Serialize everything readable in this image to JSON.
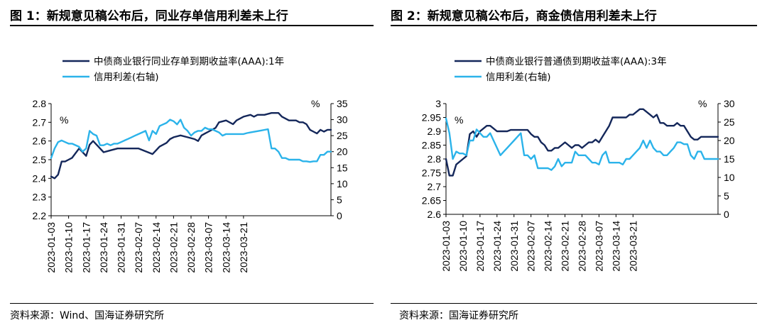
{
  "figures": [
    {
      "title": "图 1：新规意见稿公布后，同业存单信用利差未上行",
      "source": "资料来源：Wind、国海证券研究所"
    },
    {
      "title": "图 2：新规意见稿公布后，商金债信用利差未上行",
      "source": "资料来源：国海证券研究所"
    }
  ],
  "colors": {
    "dark": "#14275A",
    "light": "#2BB3EA"
  },
  "chart_data": [
    {
      "type": "line",
      "title": "图 1：新规意见稿公布后，同业存单信用利差未上行",
      "x_tick_labels": [
        "2023-01-03",
        "2023-01-10",
        "2023-01-17",
        "2023-01-24",
        "2023-01-31",
        "2023-02-07",
        "2023-02-14",
        "2023-02-21",
        "2023-02-28",
        "2023-03-07",
        "2023-03-14",
        "2023-03-21"
      ],
      "x_range": [
        0,
        80
      ],
      "ylim_left": [
        2.2,
        2.8
      ],
      "yticks_left": [
        "2.8",
        "2.7",
        "2.6",
        "2.5",
        "2.4",
        "2.3",
        "2.2"
      ],
      "ylabel_left": "%",
      "ylim_right": [
        0,
        35
      ],
      "yticks_right": [
        "35",
        "30",
        "25",
        "20",
        "15",
        "10",
        "5",
        "0"
      ],
      "ylabel_right": "%",
      "legend_position": "top",
      "series": [
        {
          "name": "中债商业银行同业存单到期收益率(AAA):1年",
          "axis": "left",
          "color": "#14275A",
          "x": [
            0,
            1,
            2,
            3,
            4,
            5,
            6,
            8,
            10,
            11,
            12,
            13,
            14,
            15,
            17,
            19,
            21,
            25,
            29,
            30,
            31,
            33,
            34,
            35,
            37,
            39,
            41,
            42,
            43,
            44,
            45,
            47,
            48,
            50,
            52,
            53,
            55,
            57,
            58,
            59,
            61,
            63,
            65,
            66,
            67,
            68,
            69,
            70,
            71,
            72,
            73,
            74,
            75,
            76,
            77,
            78,
            79,
            80
          ],
          "y": [
            2.41,
            2.4,
            2.42,
            2.49,
            2.49,
            2.5,
            2.51,
            2.56,
            2.52,
            2.58,
            2.6,
            2.58,
            2.56,
            2.54,
            2.55,
            2.56,
            2.56,
            2.56,
            2.53,
            2.55,
            2.57,
            2.59,
            2.61,
            2.62,
            2.63,
            2.62,
            2.61,
            2.6,
            2.63,
            2.64,
            2.65,
            2.67,
            2.7,
            2.71,
            2.69,
            2.71,
            2.73,
            2.74,
            2.73,
            2.74,
            2.74,
            2.75,
            2.75,
            2.73,
            2.72,
            2.71,
            2.71,
            2.71,
            2.7,
            2.7,
            2.69,
            2.66,
            2.65,
            2.64,
            2.66,
            2.65,
            2.66,
            2.66
          ]
        },
        {
          "name": "信用利差(右轴)",
          "axis": "right",
          "color": "#2BB3EA",
          "x": [
            0,
            1,
            2,
            3,
            4,
            5,
            6,
            8,
            9,
            10,
            11,
            12,
            13,
            14,
            15,
            16,
            17,
            18,
            19,
            20,
            21,
            22,
            23,
            24,
            25,
            26,
            27,
            28,
            29,
            30,
            31,
            32,
            33,
            34,
            35,
            36,
            37,
            38,
            39,
            40,
            41,
            42,
            43,
            44,
            45,
            46,
            47,
            48,
            49,
            50,
            51,
            52,
            53,
            54,
            55,
            56,
            57,
            58,
            59,
            60,
            61,
            62,
            63,
            64,
            65,
            66,
            67,
            68,
            69,
            70,
            71,
            72,
            73,
            74,
            75,
            76,
            77,
            78,
            79,
            80
          ],
          "y": [
            18,
            21,
            23,
            23.5,
            23,
            22.5,
            22.5,
            21.5,
            20,
            21,
            26.5,
            25.5,
            25,
            22,
            22,
            22.5,
            22,
            22.5,
            22.5,
            23,
            23.5,
            24,
            24.5,
            25,
            25.5,
            26,
            26.5,
            23.5,
            26.5,
            25.5,
            28,
            28.5,
            29,
            30,
            29.5,
            28.5,
            30,
            27.5,
            26.5,
            25,
            26,
            26.5,
            26.5,
            27.5,
            27,
            27,
            26.5,
            26,
            25,
            25.5,
            25.5,
            25.5,
            25.5,
            25.5,
            25.5,
            25.8,
            26,
            26.2,
            26.4,
            26.6,
            26.8,
            27,
            21,
            21,
            20,
            18,
            18,
            17.5,
            17.5,
            17.5,
            17.5,
            17,
            17,
            16.8,
            17,
            17,
            19,
            19,
            20,
            20
          ]
        }
      ]
    },
    {
      "type": "line",
      "title": "图 2：新规意见稿公布后，商金债信用利差未上行",
      "x_tick_labels": [
        "2023-01-03",
        "2023-01-10",
        "2023-01-17",
        "2023-01-24",
        "2023-01-31",
        "2023-02-07",
        "2023-02-14",
        "2023-02-21",
        "2023-02-28",
        "2023-03-07",
        "2023-03-14",
        "2023-03-21"
      ],
      "x_range": [
        0,
        80
      ],
      "ylim_left": [
        2.6,
        3.0
      ],
      "yticks_left": [
        "3",
        "2.95",
        "2.9",
        "2.85",
        "2.8",
        "2.75",
        "2.7",
        "2.65",
        "2.6"
      ],
      "ylabel_left": "%",
      "ylim_right": [
        0,
        30
      ],
      "yticks_right": [
        "30",
        "25",
        "20",
        "15",
        "10",
        "5",
        "0"
      ],
      "ylabel_right": "%",
      "legend_position": "top",
      "series": [
        {
          "name": "中债商业银行普通债到期收益率(AAA):3年",
          "axis": "left",
          "color": "#14275A",
          "x": [
            0,
            1,
            2,
            3,
            4,
            5,
            6,
            7,
            8,
            9,
            10,
            11,
            12,
            13,
            14,
            15,
            16,
            17,
            18,
            19,
            20,
            21,
            22,
            23,
            24,
            25,
            26,
            27,
            28,
            29,
            30,
            31,
            32,
            33,
            34,
            35,
            36,
            37,
            38,
            39,
            40,
            41,
            42,
            43,
            44,
            45,
            46,
            47,
            48,
            49,
            50,
            51,
            52,
            53,
            54,
            55,
            56,
            57,
            58,
            59,
            60,
            61,
            62,
            63,
            64,
            65,
            66,
            67,
            68,
            69,
            70,
            71,
            72,
            73,
            74,
            75,
            76,
            77,
            78,
            79,
            80
          ],
          "y": [
            2.8,
            2.74,
            2.74,
            2.78,
            2.79,
            2.8,
            2.81,
            2.89,
            2.9,
            2.88,
            2.9,
            2.91,
            2.92,
            2.92,
            2.91,
            2.9,
            2.9,
            2.9,
            2.9,
            2.905,
            2.905,
            2.905,
            2.905,
            2.905,
            2.905,
            2.89,
            2.88,
            2.88,
            2.86,
            2.85,
            2.83,
            2.83,
            2.84,
            2.84,
            2.85,
            2.86,
            2.85,
            2.84,
            2.85,
            2.85,
            2.84,
            2.85,
            2.86,
            2.86,
            2.87,
            2.86,
            2.88,
            2.9,
            2.92,
            2.95,
            2.95,
            2.95,
            2.95,
            2.95,
            2.96,
            2.96,
            2.97,
            2.98,
            2.98,
            2.97,
            2.96,
            2.95,
            2.96,
            2.93,
            2.93,
            2.92,
            2.92,
            2.92,
            2.93,
            2.92,
            2.92,
            2.9,
            2.88,
            2.87,
            2.87,
            2.88,
            2.88,
            2.88,
            2.88,
            2.88,
            2.88
          ]
        },
        {
          "name": "信用利差(右轴)",
          "axis": "right",
          "color": "#2BB3EA",
          "x": [
            0,
            1,
            2,
            3,
            4,
            5,
            6,
            7,
            8,
            9,
            10,
            11,
            12,
            13,
            14,
            15,
            16,
            17,
            18,
            19,
            20,
            21,
            22,
            23,
            24,
            25,
            26,
            27,
            28,
            29,
            30,
            31,
            32,
            33,
            34,
            35,
            36,
            37,
            38,
            39,
            40,
            41,
            42,
            43,
            44,
            45,
            46,
            47,
            48,
            49,
            50,
            51,
            52,
            53,
            54,
            55,
            56,
            57,
            58,
            59,
            60,
            61,
            62,
            63,
            64,
            65,
            66,
            67,
            68,
            69,
            70,
            71,
            72,
            73,
            74,
            75,
            76,
            77,
            78,
            79,
            80
          ],
          "y": [
            26,
            22,
            15,
            17,
            16.5,
            16.5,
            16,
            20,
            20,
            23,
            22,
            21,
            21,
            22,
            20,
            18,
            16,
            17,
            18,
            19,
            20,
            21,
            22,
            16,
            16,
            15,
            16,
            12.5,
            12.5,
            12.5,
            12.5,
            12,
            13,
            15,
            13,
            14,
            14,
            14,
            17,
            16,
            16,
            16,
            15,
            14,
            14,
            13.5,
            16,
            17,
            14,
            14,
            14,
            14,
            13.5,
            15,
            15,
            16,
            17,
            18,
            20,
            18,
            20,
            18,
            17,
            17,
            16,
            16,
            17,
            18,
            19.5,
            19.5,
            19,
            19,
            16,
            15,
            17,
            17,
            15,
            15,
            15,
            15,
            15
          ]
        }
      ]
    }
  ]
}
